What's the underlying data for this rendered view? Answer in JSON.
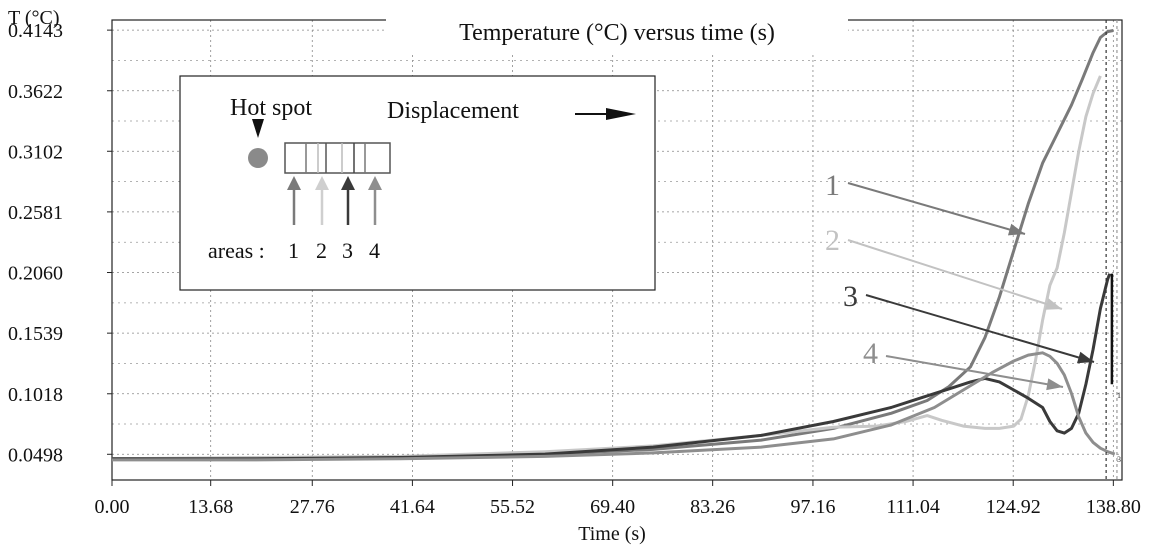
{
  "chart_data": {
    "type": "line",
    "title": "Temperature (°C) versus time (s)",
    "xlabel": "Time (s)",
    "ylabel": "T (°C)",
    "x_ticks": [
      0.0,
      13.68,
      27.76,
      41.64,
      55.52,
      69.4,
      83.26,
      97.16,
      111.04,
      124.92,
      138.8
    ],
    "x_tick_labels": [
      "0.00",
      "13.68",
      "27.76",
      "41.64",
      "55.52",
      "69.40",
      "83.26",
      "97.16",
      "111.04",
      "124.92",
      "138.80"
    ],
    "y_ticks": [
      0.0498,
      0.1018,
      0.1539,
      0.206,
      0.2581,
      0.3102,
      0.3622,
      0.4143
    ],
    "y_tick_labels": [
      "0.0498",
      "0.1018",
      "0.1539",
      "0.2060",
      "0.2581",
      "0.3102",
      "0.3622",
      "0.4143"
    ],
    "xlim": [
      0,
      140
    ],
    "ylim": [
      0.0277,
      0.423
    ],
    "grid": true,
    "series": [
      {
        "label": "1",
        "color": "#7a7a7a",
        "points": [
          [
            0,
            0.046
          ],
          [
            20,
            0.046
          ],
          [
            40,
            0.047
          ],
          [
            60,
            0.05
          ],
          [
            75,
            0.054
          ],
          [
            90,
            0.062
          ],
          [
            100,
            0.072
          ],
          [
            108,
            0.085
          ],
          [
            113,
            0.096
          ],
          [
            116,
            0.108
          ],
          [
            119,
            0.125
          ],
          [
            121,
            0.15
          ],
          [
            123,
            0.185
          ],
          [
            125,
            0.225
          ],
          [
            127,
            0.265
          ],
          [
            129,
            0.3
          ],
          [
            131,
            0.325
          ],
          [
            133,
            0.35
          ],
          [
            134.5,
            0.372
          ],
          [
            136,
            0.395
          ],
          [
            137,
            0.408
          ],
          [
            138,
            0.413
          ],
          [
            138.8,
            0.414
          ]
        ]
      },
      {
        "label": "2",
        "color": "#c8c8c8",
        "points": [
          [
            0,
            0.046
          ],
          [
            20,
            0.047
          ],
          [
            40,
            0.048
          ],
          [
            60,
            0.052
          ],
          [
            75,
            0.057
          ],
          [
            90,
            0.066
          ],
          [
            100,
            0.073
          ],
          [
            106,
            0.074
          ],
          [
            110,
            0.078
          ],
          [
            113,
            0.083
          ],
          [
            115,
            0.079
          ],
          [
            118,
            0.074
          ],
          [
            121,
            0.072
          ],
          [
            123,
            0.072
          ],
          [
            125,
            0.074
          ],
          [
            126,
            0.08
          ],
          [
            127,
            0.1
          ],
          [
            128,
            0.13
          ],
          [
            129,
            0.165
          ],
          [
            130,
            0.195
          ],
          [
            131,
            0.21
          ],
          [
            132,
            0.24
          ],
          [
            133,
            0.275
          ],
          [
            134,
            0.31
          ],
          [
            135,
            0.34
          ],
          [
            136,
            0.36
          ],
          [
            137,
            0.375
          ]
        ]
      },
      {
        "label": "3",
        "color": "#3a3a3a",
        "points": [
          [
            0,
            0.046
          ],
          [
            20,
            0.046
          ],
          [
            40,
            0.047
          ],
          [
            60,
            0.05
          ],
          [
            75,
            0.056
          ],
          [
            90,
            0.066
          ],
          [
            100,
            0.078
          ],
          [
            108,
            0.09
          ],
          [
            112,
            0.098
          ],
          [
            116,
            0.106
          ],
          [
            119,
            0.112
          ],
          [
            121,
            0.115
          ],
          [
            123,
            0.112
          ],
          [
            125,
            0.105
          ],
          [
            127,
            0.098
          ],
          [
            129,
            0.09
          ],
          [
            130,
            0.078
          ],
          [
            131,
            0.07
          ],
          [
            132,
            0.068
          ],
          [
            133,
            0.072
          ],
          [
            134,
            0.085
          ],
          [
            135,
            0.11
          ],
          [
            136,
            0.14
          ],
          [
            137,
            0.175
          ],
          [
            138,
            0.2
          ],
          [
            138.3,
            0.205
          ]
        ]
      },
      {
        "label": "4",
        "color": "#8e8e8e",
        "points": [
          [
            0,
            0.045
          ],
          [
            20,
            0.045
          ],
          [
            40,
            0.046
          ],
          [
            60,
            0.048
          ],
          [
            75,
            0.051
          ],
          [
            90,
            0.056
          ],
          [
            100,
            0.063
          ],
          [
            108,
            0.075
          ],
          [
            114,
            0.09
          ],
          [
            118,
            0.105
          ],
          [
            122,
            0.12
          ],
          [
            125,
            0.13
          ],
          [
            127,
            0.135
          ],
          [
            129,
            0.137
          ],
          [
            130,
            0.134
          ],
          [
            131,
            0.128
          ],
          [
            132,
            0.118
          ],
          [
            133,
            0.102
          ],
          [
            134,
            0.082
          ],
          [
            135,
            0.068
          ],
          [
            136,
            0.06
          ],
          [
            137,
            0.055
          ],
          [
            138,
            0.052
          ],
          [
            139,
            0.05
          ]
        ]
      }
    ]
  },
  "legend": {
    "hot_spot": "Hot spot",
    "displacement": "Displacement",
    "areas_label": "areas :",
    "area_numbers": [
      "1",
      "2",
      "3",
      "4"
    ],
    "area_colors": [
      "#7a7a7a",
      "#cfcfcf",
      "#3a3a3a",
      "#8e8e8e"
    ]
  },
  "callouts": [
    "1",
    "2",
    "3",
    "4"
  ],
  "end_marks": [
    "1",
    "3"
  ]
}
